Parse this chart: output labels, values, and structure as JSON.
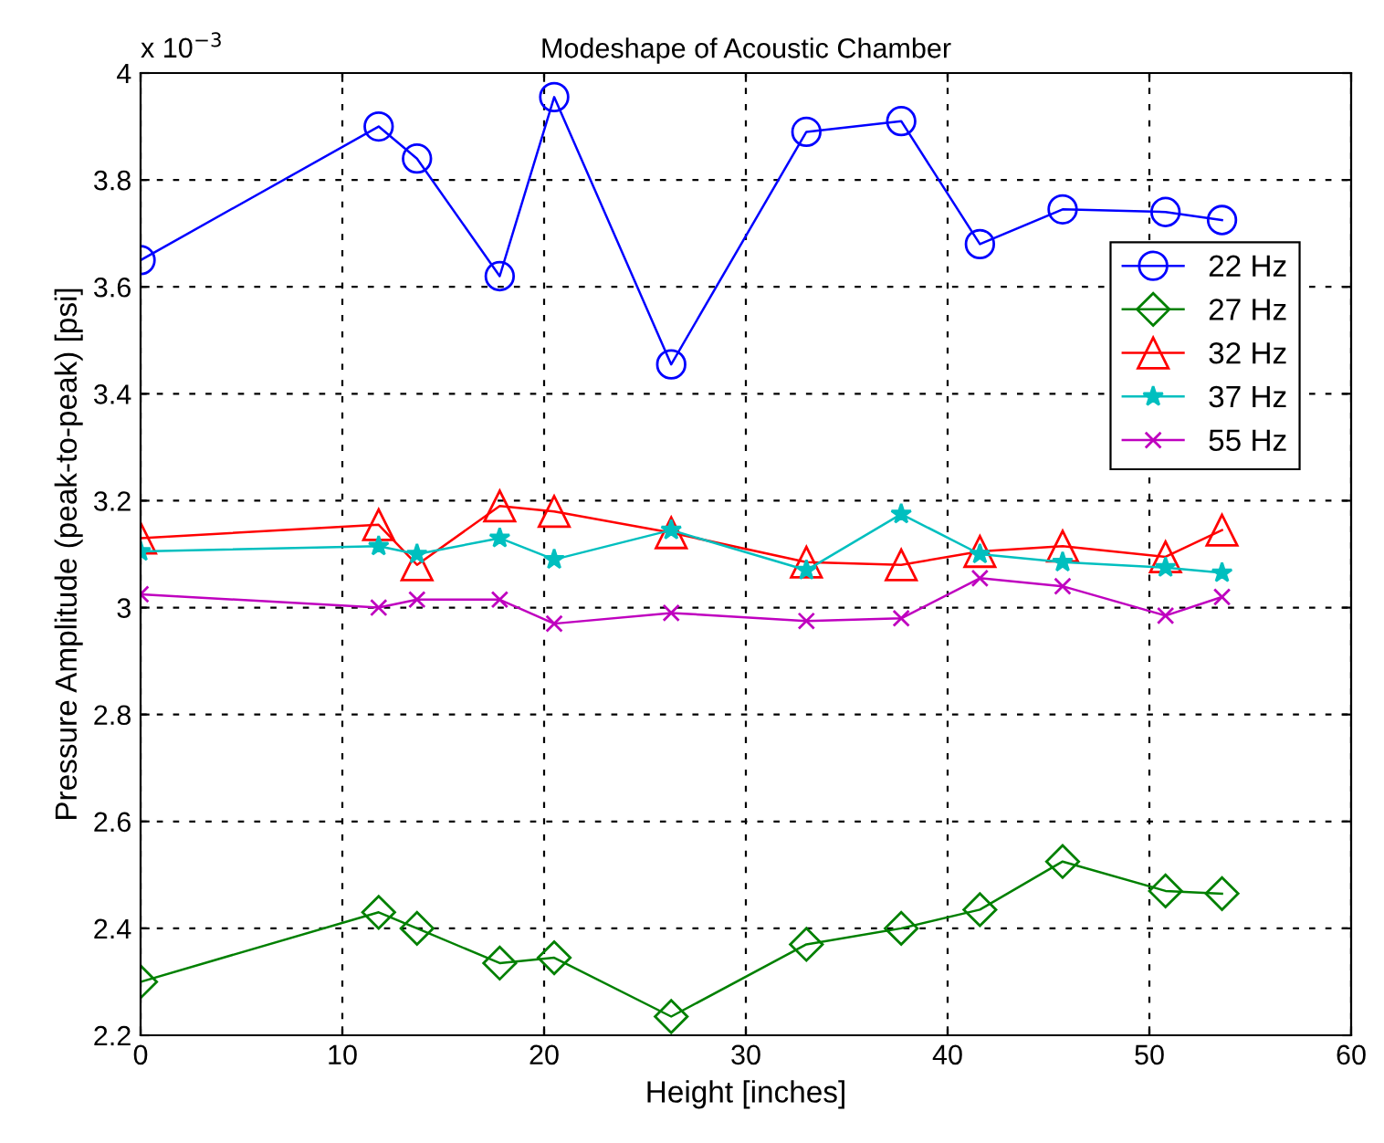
{
  "chart_data": {
    "type": "line",
    "title": "Modeshape of Acoustic Chamber",
    "xlabel": "Height [inches]",
    "ylabel": "Pressure Amplitude (peak-to-peak) [psi]",
    "annotations": [
      "x 10$^{−3}$"
    ],
    "x": [
      0,
      11.8,
      13.7,
      17.8,
      20.5,
      26.3,
      33.0,
      37.7,
      41.6,
      45.7,
      50.8,
      53.6
    ],
    "series": [
      {
        "name": "22 Hz",
        "color": "#0000ff",
        "marker": "circle",
        "values": [
          3.65,
          3.9,
          3.84,
          3.62,
          3.955,
          3.455,
          3.89,
          3.91,
          3.68,
          3.745,
          3.74,
          3.725
        ]
      },
      {
        "name": "27 Hz",
        "color": "#008000",
        "marker": "diamond",
        "values": [
          2.3,
          2.43,
          2.4,
          2.335,
          2.345,
          2.235,
          2.37,
          2.4,
          2.435,
          2.525,
          2.47,
          2.465
        ]
      },
      {
        "name": "32 Hz",
        "color": "#ff0000",
        "marker": "triangle",
        "values": [
          3.13,
          3.155,
          3.08,
          3.19,
          3.18,
          3.14,
          3.085,
          3.08,
          3.105,
          3.115,
          3.095,
          3.145
        ]
      },
      {
        "name": "37 Hz",
        "color": "#00bfbf",
        "marker": "star",
        "values": [
          3.105,
          3.115,
          3.1,
          3.13,
          3.09,
          3.145,
          3.07,
          3.175,
          3.1,
          3.085,
          3.075,
          3.065
        ]
      },
      {
        "name": "55 Hz",
        "color": "#bf00bf",
        "marker": "cross",
        "values": [
          3.025,
          3.0,
          3.015,
          3.015,
          2.97,
          2.99,
          2.975,
          2.98,
          3.055,
          3.04,
          2.985,
          3.02
        ]
      }
    ],
    "xlim": [
      0,
      60
    ],
    "xticks": [
      0,
      10,
      20,
      30,
      40,
      50,
      60
    ],
    "ylim": [
      2.2,
      4
    ],
    "yticks": [
      2.2,
      2.4,
      2.6,
      2.8,
      3,
      3.2,
      3.4,
      3.6,
      3.8,
      4
    ],
    "grid": true,
    "legend": "top right",
    "line_style": "solid"
  }
}
